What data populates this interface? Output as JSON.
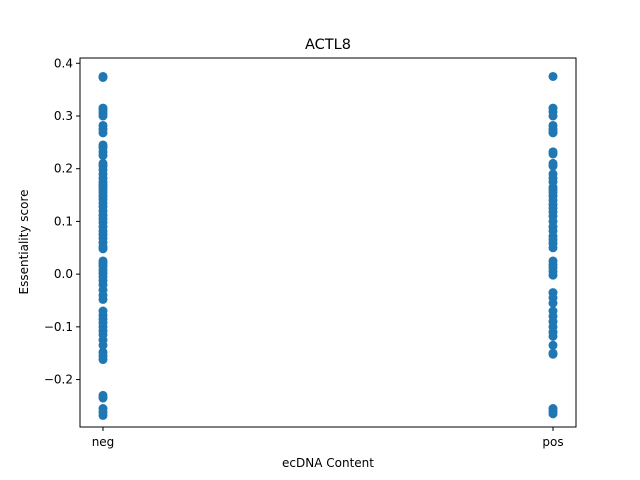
{
  "chart_data": {
    "type": "scatter",
    "title": "ACTL8",
    "xlabel": "ecDNA Content",
    "ylabel": "Essentiality score",
    "categories": [
      "neg",
      "pos"
    ],
    "ylim": [
      -0.29,
      0.41
    ],
    "yticks": [
      -0.2,
      -0.1,
      0.0,
      0.1,
      0.2,
      0.3,
      0.4
    ],
    "ytick_labels": [
      "−0.2",
      "−0.1",
      "0.0",
      "0.1",
      "0.2",
      "0.3",
      "0.4"
    ],
    "grid": false,
    "marker_color": "#1f77b4",
    "series": [
      {
        "category": "neg",
        "values": [
          0.375,
          0.373,
          0.315,
          0.31,
          0.305,
          0.3,
          0.282,
          0.275,
          0.268,
          0.245,
          0.24,
          0.232,
          0.225,
          0.21,
          0.205,
          0.198,
          0.19,
          0.182,
          0.175,
          0.17,
          0.165,
          0.16,
          0.155,
          0.148,
          0.142,
          0.135,
          0.128,
          0.12,
          0.112,
          0.105,
          0.098,
          0.09,
          0.082,
          0.075,
          0.068,
          0.06,
          0.052,
          0.048,
          0.025,
          0.02,
          0.015,
          0.008,
          0.002,
          -0.005,
          -0.012,
          -0.02,
          -0.03,
          -0.04,
          -0.048,
          -0.07,
          -0.078,
          -0.085,
          -0.092,
          -0.1,
          -0.108,
          -0.115,
          -0.125,
          -0.135,
          -0.148,
          -0.155,
          -0.162,
          -0.23,
          -0.235,
          -0.255,
          -0.262,
          -0.268
        ]
      },
      {
        "category": "pos",
        "values": [
          0.375,
          0.315,
          0.308,
          0.3,
          0.282,
          0.275,
          0.27,
          0.268,
          0.232,
          0.228,
          0.21,
          0.205,
          0.19,
          0.182,
          0.175,
          0.165,
          0.16,
          0.155,
          0.148,
          0.14,
          0.132,
          0.125,
          0.118,
          0.11,
          0.1,
          0.09,
          0.082,
          0.072,
          0.065,
          0.058,
          0.05,
          0.025,
          0.018,
          0.012,
          0.005,
          -0.002,
          -0.035,
          -0.045,
          -0.055,
          -0.07,
          -0.08,
          -0.09,
          -0.1,
          -0.11,
          -0.118,
          -0.135,
          -0.15,
          -0.152,
          -0.255,
          -0.26,
          -0.265
        ]
      }
    ]
  }
}
